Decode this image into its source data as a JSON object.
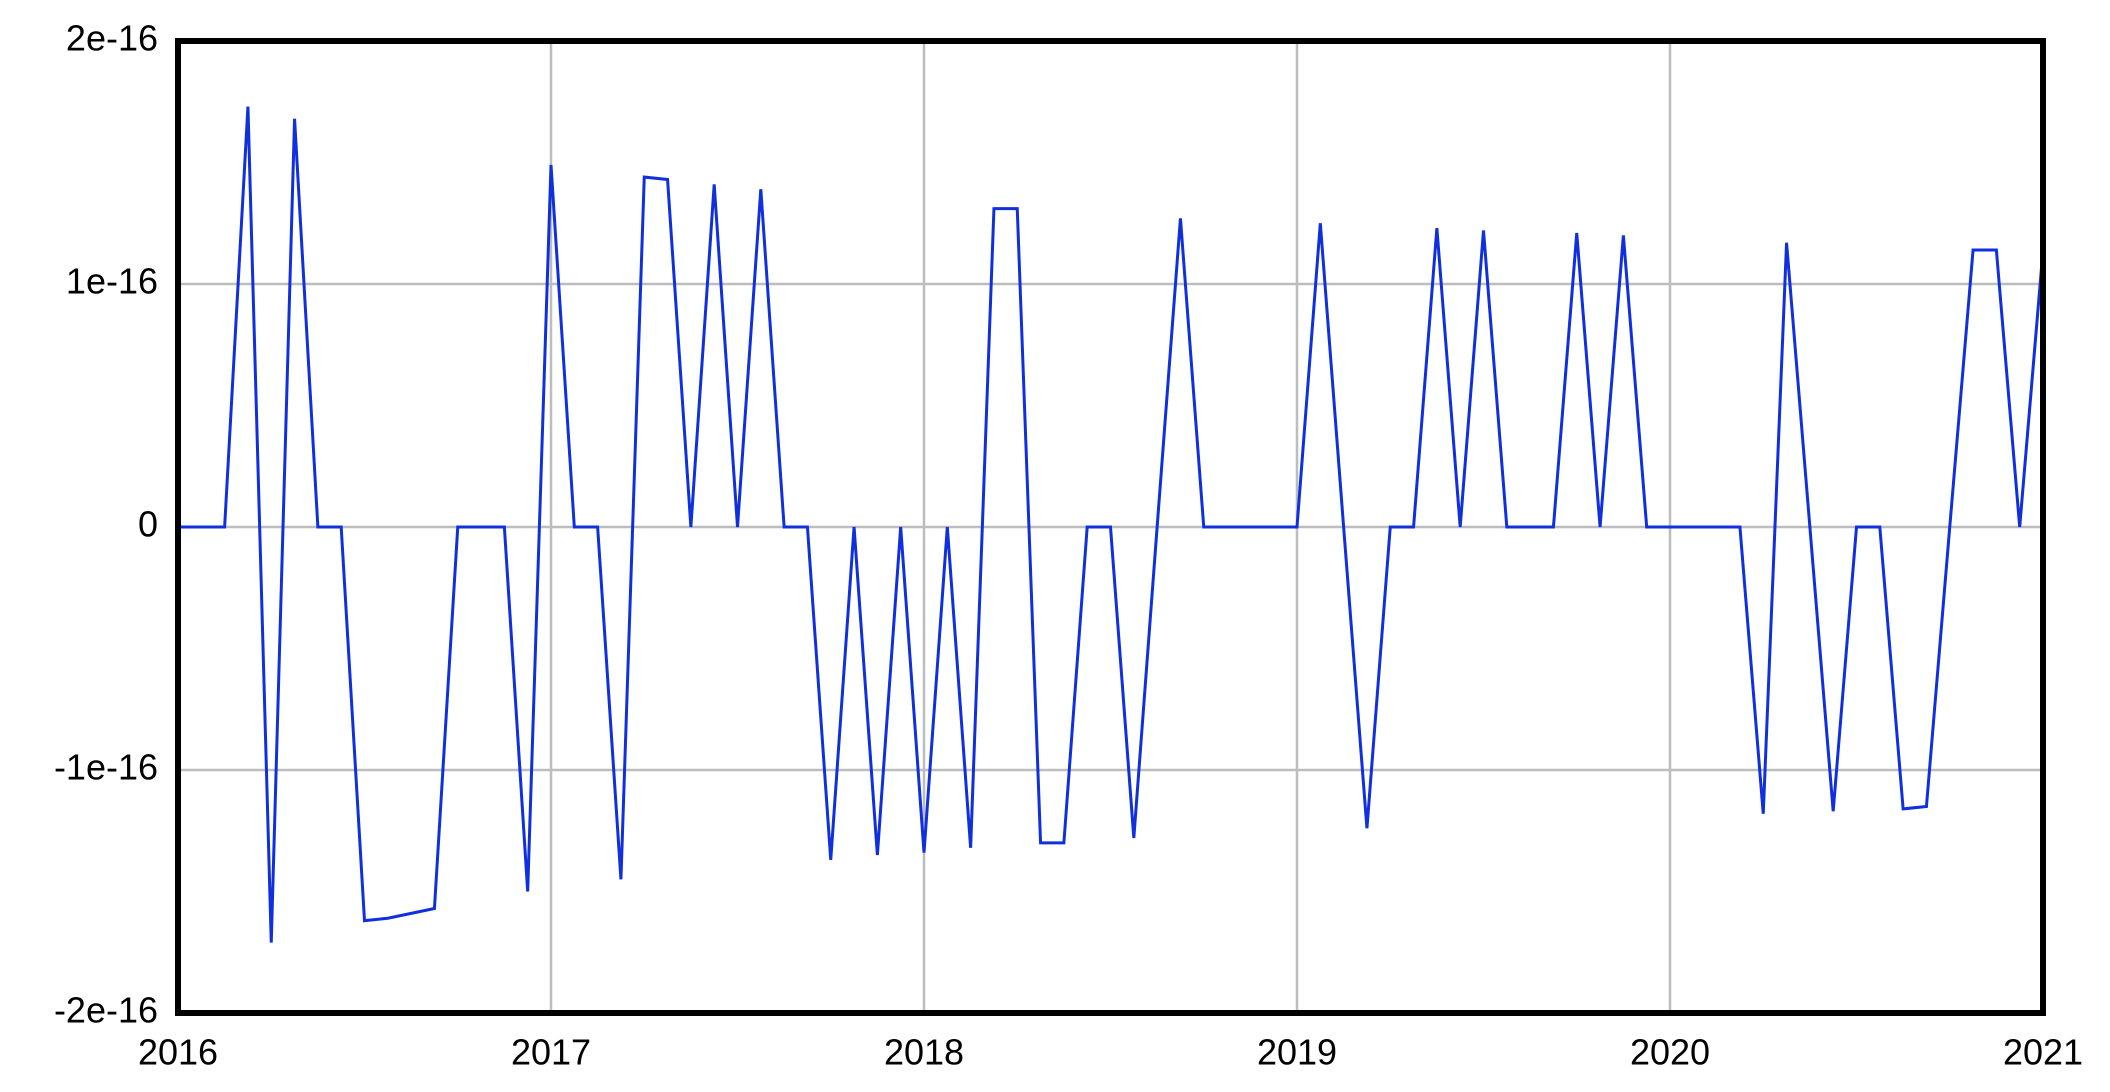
{
  "chart_data": {
    "type": "line",
    "x": [
      2016,
      2016.0625,
      2016.125,
      2016.1875,
      2016.25,
      2016.3125,
      2016.375,
      2016.4375,
      2016.5,
      2016.5625,
      2016.625,
      2016.6875,
      2016.75,
      2016.8125,
      2016.875,
      2016.9375,
      2017,
      2017.0625,
      2017.125,
      2017.1875,
      2017.25,
      2017.3125,
      2017.375,
      2017.4375,
      2017.5,
      2017.5625,
      2017.625,
      2017.6875,
      2017.75,
      2017.8125,
      2017.875,
      2017.9375,
      2018,
      2018.0625,
      2018.125,
      2018.1875,
      2018.25,
      2018.3125,
      2018.375,
      2018.4375,
      2018.5,
      2018.5625,
      2018.625,
      2018.6875,
      2018.75,
      2018.8125,
      2018.875,
      2018.9375,
      2019,
      2019.0625,
      2019.125,
      2019.1875,
      2019.25,
      2019.3125,
      2019.375,
      2019.4375,
      2019.5,
      2019.5625,
      2019.625,
      2019.6875,
      2019.75,
      2019.8125,
      2019.875,
      2019.9375,
      2020,
      2020.0625,
      2020.125,
      2020.1875,
      2020.25,
      2020.3125,
      2020.375,
      2020.4375,
      2020.5,
      2020.5625,
      2020.625,
      2020.6875,
      2020.75,
      2020.8125,
      2020.875,
      2020.9375,
      2021
    ],
    "series": [
      {
        "color": "#1030e0",
        "values": [
          0,
          0,
          0,
          1.73e-16,
          -1.71e-16,
          1.68e-16,
          0,
          0,
          -1.62e-16,
          -1.61e-16,
          -1.59e-16,
          -1.57e-16,
          0,
          0,
          0,
          -1.5e-16,
          1.49e-16,
          0,
          0,
          -1.45e-16,
          1.44e-16,
          1.43e-16,
          0,
          1.41e-16,
          0,
          1.39e-16,
          0,
          0,
          -1.37e-16,
          0,
          -1.35e-16,
          0,
          -1.34e-16,
          0,
          -1.32e-16,
          1.31e-16,
          1.31e-16,
          -1.3e-16,
          -1.3e-16,
          0,
          0,
          -1.28e-16,
          0,
          1.27e-16,
          0,
          0,
          0,
          0,
          0,
          1.25e-16,
          0,
          -1.24e-16,
          0,
          0,
          1.23e-16,
          0,
          1.22e-16,
          0,
          0,
          0,
          1.21e-16,
          0,
          1.2e-16,
          0,
          0,
          0,
          0,
          0,
          -1.18e-16,
          1.17e-16,
          0,
          -1.17e-16,
          0,
          0,
          -1.16e-16,
          -1.15e-16,
          0,
          1.14e-16,
          1.14e-16,
          0,
          1.14e-16
        ]
      }
    ],
    "xlim": [
      2016,
      2021
    ],
    "xticks": [
      2016,
      2017,
      2018,
      2019,
      2020,
      2021
    ],
    "ylim": [
      -2e-16,
      2e-16
    ],
    "yticks": [
      -2e-16,
      -1e-16,
      0,
      1e-16,
      2e-16
    ],
    "grid": true
  }
}
